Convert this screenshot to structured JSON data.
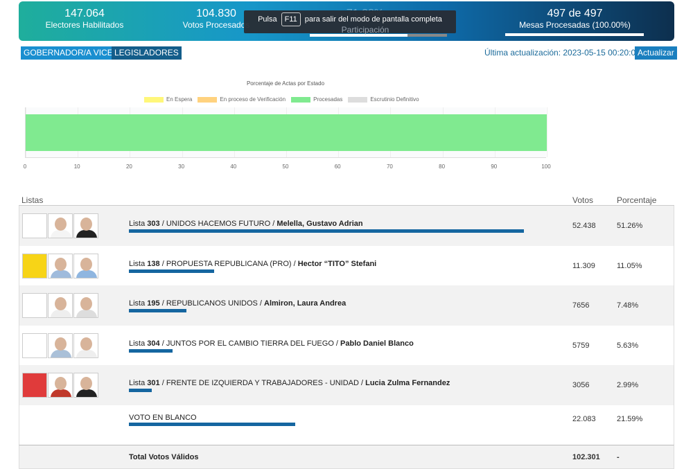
{
  "header": {
    "electores": {
      "value": "147.064",
      "label": "Electores Habilitados"
    },
    "votos": {
      "value": "104.830",
      "label": "Votos Procesados"
    },
    "participacion": {
      "value": "71.28%",
      "label": "Participación",
      "progress": 71.28
    },
    "mesas": {
      "value": "497 de 497",
      "label": "Mesas Procesadas (100.00%)",
      "progress": 100
    }
  },
  "overlay": {
    "pre": "Pulsa",
    "key": "F11",
    "post": "para salir del modo de pantalla completa"
  },
  "tabs": [
    {
      "label": "GOBERNADOR/A VICE",
      "color": "#1a8fd0"
    },
    {
      "label": "LEGISLADORES",
      "color": "#135d8a"
    }
  ],
  "update": {
    "label": "Última actualización: 2023-05-15 00:20:01",
    "button": "Actualizar"
  },
  "chart_data": {
    "type": "bar",
    "orientation": "horizontal",
    "stacked": true,
    "title": "Porcentaje de Actas por Estado",
    "legend_position": "top",
    "series": [
      {
        "name": "En Espera",
        "values": [
          0
        ],
        "color": "#fff77a"
      },
      {
        "name": "En proceso de Verificación",
        "values": [
          0
        ],
        "color": "#ffd27f"
      },
      {
        "name": "Procesadas",
        "values": [
          100
        ],
        "color": "#80ea90"
      },
      {
        "name": "Escrutinio Definitivo",
        "values": [
          0
        ],
        "color": "#dddddd"
      }
    ],
    "xlim": [
      0,
      100
    ],
    "xticks": [
      "0",
      "10",
      "20",
      "30",
      "40",
      "50",
      "60",
      "70",
      "80",
      "90",
      "100"
    ],
    "grid": true
  },
  "table": {
    "headers": {
      "listas": "Listas",
      "votos": "Votos",
      "porcentaje": "Porcentaje"
    },
    "rows": [
      {
        "prefix": "Lista ",
        "num": "303",
        "party": " / UNIDOS HACEMOS FUTURO / ",
        "candidate": "Melella, Gustavo Adrian",
        "votes": "52.438",
        "pct": "51.26%",
        "pct_value": 51.26,
        "logo_color": "#ffffff"
      },
      {
        "prefix": "Lista ",
        "num": "138",
        "party": " / PROPUESTA REPUBLICANA (PRO) / ",
        "candidate": "Hector “TITO” Stefani",
        "votes": "11.309",
        "pct": "11.05%",
        "pct_value": 11.05,
        "logo_color": "#f7d417"
      },
      {
        "prefix": "Lista ",
        "num": "195",
        "party": " / REPUBLICANOS UNIDOS / ",
        "candidate": "Almiron, Laura Andrea",
        "votes": "7656",
        "pct": "7.48%",
        "pct_value": 7.48,
        "logo_color": "#ffffff"
      },
      {
        "prefix": "Lista ",
        "num": "304",
        "party": " / JUNTOS POR EL CAMBIO TIERRA DEL FUEGO / ",
        "candidate": "Pablo Daniel Blanco",
        "votes": "5759",
        "pct": "5.63%",
        "pct_value": 5.63,
        "logo_color": "#ffffff"
      },
      {
        "prefix": "Lista ",
        "num": "301",
        "party": " / FRENTE DE IZQUIERDA Y TRABAJADORES - UNIDAD / ",
        "candidate": "Lucia Zulma Fernandez",
        "votes": "3056",
        "pct": "2.99%",
        "pct_value": 2.99,
        "logo_color": "#e03b3b"
      }
    ],
    "blank": {
      "label": "VOTO EN BLANCO",
      "votes": "22.083",
      "pct": "21.59%",
      "pct_value": 21.59
    },
    "total": {
      "label": "Total Votos Válidos",
      "votes": "102.301",
      "pct": "-"
    }
  }
}
